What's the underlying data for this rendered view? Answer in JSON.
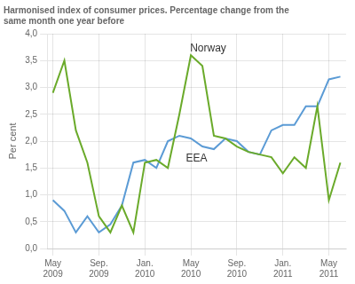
{
  "chart_data": {
    "type": "line",
    "title": [
      "Harmonised index of consumer prices. Percentage change from the",
      "same month one year before"
    ],
    "y_label": "Per cent",
    "categories": [
      "May 2009",
      null,
      null,
      null,
      "Sep. 2009",
      null,
      null,
      null,
      "Jan. 2010",
      null,
      null,
      null,
      "May 2010",
      null,
      null,
      null,
      "Sep. 2010",
      null,
      null,
      null,
      "Jan. 2011",
      null,
      null,
      null,
      "May 2011",
      null
    ],
    "series": [
      {
        "name": "Norway",
        "color": "#6aaa2a",
        "values": [
          2.9,
          3.5,
          2.2,
          1.6,
          0.6,
          0.3,
          0.8,
          0.3,
          1.6,
          1.65,
          1.5,
          2.5,
          3.6,
          3.4,
          2.1,
          2.05,
          1.9,
          1.8,
          1.75,
          1.7,
          1.4,
          1.7,
          1.5,
          2.65,
          0.9,
          1.6
        ]
      },
      {
        "name": "EEA",
        "color": "#5b9bd5",
        "values": [
          0.9,
          0.7,
          0.3,
          0.6,
          0.3,
          0.45,
          0.8,
          1.6,
          1.65,
          1.5,
          2.0,
          2.1,
          2.05,
          1.9,
          1.85,
          2.05,
          2.0,
          1.8,
          1.75,
          2.2,
          2.3,
          2.3,
          2.65,
          2.65,
          3.15,
          3.2
        ]
      }
    ],
    "annotations": [
      {
        "text": "Norway",
        "x": 13.5,
        "y": 3.62
      },
      {
        "text": "EEA",
        "x": 12.5,
        "y": 1.58
      }
    ],
    "ylim": [
      0.0,
      4.0
    ],
    "yticks": [
      {
        "value": 0.0,
        "label": "0,0"
      },
      {
        "value": 0.5,
        "label": "0,5"
      },
      {
        "value": 1.0,
        "label": "1,0"
      },
      {
        "value": 1.5,
        "label": "1,5"
      },
      {
        "value": 2.0,
        "label": "2,0"
      },
      {
        "value": 2.5,
        "label": "2,5"
      },
      {
        "value": 3.0,
        "label": "3,0"
      },
      {
        "value": 3.5,
        "label": "3,5"
      },
      {
        "value": 4.0,
        "label": "4,0"
      }
    ],
    "grid": true
  }
}
